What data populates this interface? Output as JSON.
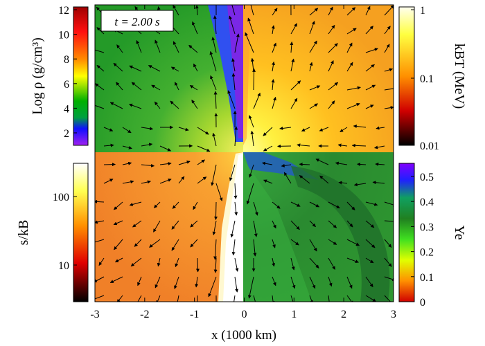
{
  "time_label": "t = 2.00 s",
  "x_axis": {
    "label": "x (1000 km)",
    "ticks": [
      "-3",
      "-2",
      "-1",
      "0",
      "1",
      "2",
      "3"
    ]
  },
  "colorbars": {
    "density": {
      "label": "Log ρ (g/cm³)",
      "ticks": [
        "12",
        "10",
        "8",
        "6",
        "4",
        "2"
      ]
    },
    "temperature": {
      "label": "kBT (MeV)",
      "ticks": [
        "1",
        "0.1",
        "0.01"
      ]
    },
    "entropy": {
      "label": "s/kB",
      "ticks": [
        "100",
        "10"
      ]
    },
    "ye": {
      "label": "Ye",
      "ticks": [
        "0.5",
        "0.4",
        "0.3",
        "0.2",
        "0.1",
        "0"
      ]
    }
  },
  "colors": {
    "density_green": "#2fa52a",
    "temperature_orange": "#f6a020",
    "entropy_orange": "#f07a24",
    "ye_green": "#2e8f2e",
    "ye_dark_green": "#1f6f2a",
    "jet_white": "#ffffff",
    "jet_purple": "#7a28e6"
  }
}
